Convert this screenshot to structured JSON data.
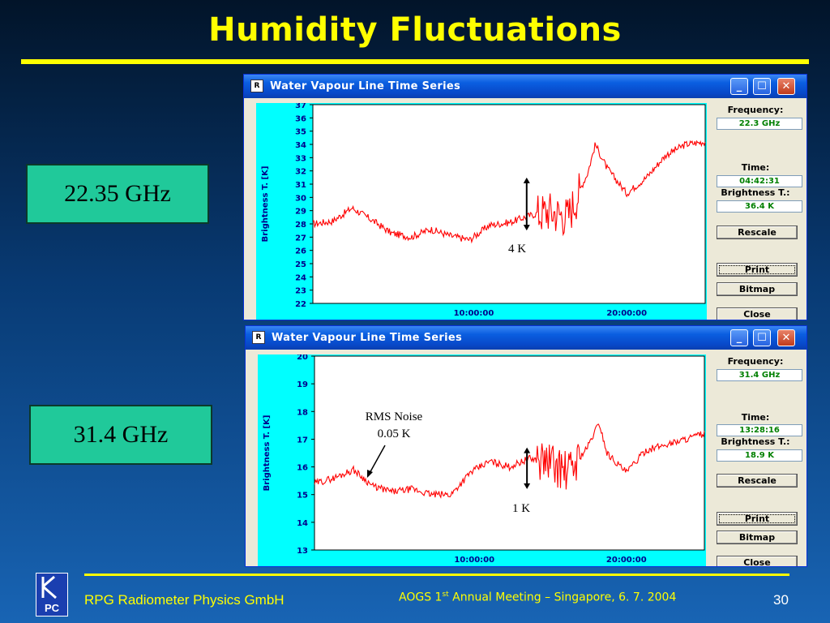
{
  "slide": {
    "title": "Humidity Fluctuations",
    "label_top": "22.35 GHz",
    "label_bottom": "31.4 GHz",
    "footer_company": "RPG Radiometer Physics GmbH",
    "footer_meeting_pre": "AOGS 1",
    "footer_meeting_sup": "st",
    "footer_meeting_post": " Annual Meeting  – Singapore,  6. 7.  2004",
    "page_number": "30",
    "logo_text": "PC"
  },
  "windows": [
    {
      "title": "Water Vapour Line Time Series",
      "frequency_label": "Frequency:",
      "frequency_value": "22.3 GHz",
      "time_label": "Time:",
      "time_value": "04:42:31",
      "brightness_label": "Brightness T.:",
      "brightness_value": "36.4 K",
      "buttons": {
        "rescale": "Rescale",
        "print": "Print",
        "bitmap": "Bitmap",
        "close": "Close"
      },
      "annotations": {
        "span": "4 K"
      }
    },
    {
      "title": "Water Vapour Line Time Series",
      "frequency_label": "Frequency:",
      "frequency_value": "31.4 GHz",
      "time_label": "Time:",
      "time_value": "13:28:16",
      "brightness_label": "Brightness T.:",
      "brightness_value": "18.9 K",
      "buttons": {
        "rescale": "Rescale",
        "print": "Print",
        "bitmap": "Bitmap",
        "close": "Close"
      },
      "annotations": {
        "rms_line1": "RMS Noise",
        "rms_line2": "0.05 K",
        "span": "1 K"
      }
    }
  ],
  "chart_data": [
    {
      "type": "line",
      "ylabel": "Brightness T. [K]",
      "ylim": [
        22,
        37
      ],
      "yticks": [
        22,
        23,
        24,
        25,
        26,
        27,
        28,
        29,
        30,
        31,
        32,
        33,
        34,
        35,
        36,
        37
      ],
      "xticks": [
        "10:00:00",
        "20:00:00"
      ],
      "grid": false,
      "color": "#ff0000",
      "x_fraction": [
        0,
        0.05,
        0.1,
        0.15,
        0.2,
        0.25,
        0.3,
        0.35,
        0.4,
        0.45,
        0.5,
        0.55,
        0.6,
        0.65,
        0.7,
        0.72,
        0.75,
        0.8,
        0.85,
        0.9,
        0.95,
        1.0
      ],
      "values": [
        28,
        28.2,
        29.2,
        28.3,
        27.3,
        27,
        27.6,
        27.1,
        26.8,
        27.9,
        28.1,
        28.6,
        29,
        28.6,
        31.8,
        34,
        32.2,
        30.3,
        31.5,
        33.2,
        34,
        34.2
      ]
    },
    {
      "type": "line",
      "ylabel": "Brightness T. [K]",
      "ylim": [
        13,
        20
      ],
      "yticks": [
        13,
        14,
        15,
        16,
        17,
        18,
        19,
        20
      ],
      "xticks": [
        "10:00:00",
        "20:00:00"
      ],
      "grid": false,
      "color": "#ff0000",
      "x_fraction": [
        0,
        0.05,
        0.1,
        0.15,
        0.2,
        0.25,
        0.3,
        0.35,
        0.4,
        0.45,
        0.5,
        0.55,
        0.6,
        0.65,
        0.7,
        0.73,
        0.75,
        0.8,
        0.85,
        0.9,
        0.95,
        1.0
      ],
      "values": [
        15.4,
        15.6,
        15.9,
        15.3,
        15.1,
        15.2,
        15.0,
        15.0,
        15.8,
        16.2,
        16.0,
        16.3,
        16.2,
        15.8,
        16.7,
        17.6,
        16.5,
        15.8,
        16.6,
        16.8,
        17.0,
        17.2
      ]
    }
  ]
}
